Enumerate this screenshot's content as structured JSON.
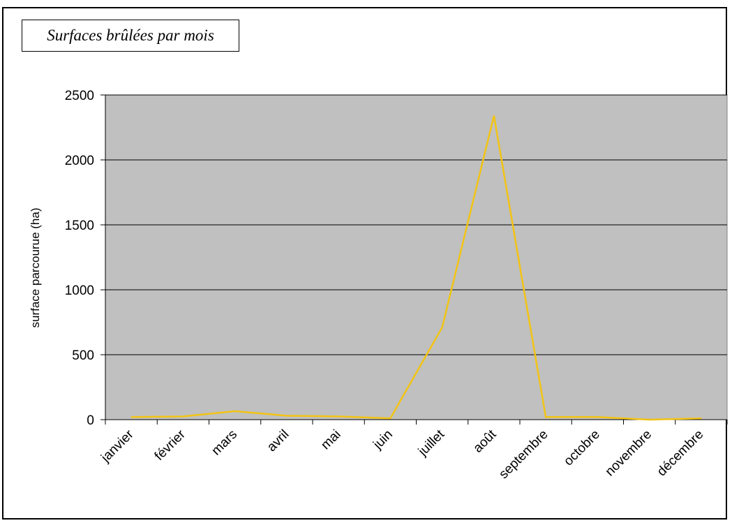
{
  "chart_data": {
    "type": "line",
    "title": "Surfaces brûlées par mois",
    "xlabel": "",
    "ylabel": "surface parcourue (ha)",
    "categories": [
      "janvier",
      "février",
      "mars",
      "avril",
      "mai",
      "juin",
      "juillet",
      "août",
      "septembre",
      "octobre",
      "novembre",
      "décembre"
    ],
    "series": [
      {
        "values": [
          20,
          25,
          65,
          30,
          25,
          10,
          710,
          2340,
          20,
          20,
          0,
          10
        ]
      }
    ],
    "ylim": [
      0,
      2500
    ],
    "yticks": [
      "0",
      "500",
      "1000",
      "1500",
      "2000",
      "2500"
    ],
    "grid": true,
    "line_color": "#F2C314",
    "plot_bg": "#C0C0C0"
  }
}
